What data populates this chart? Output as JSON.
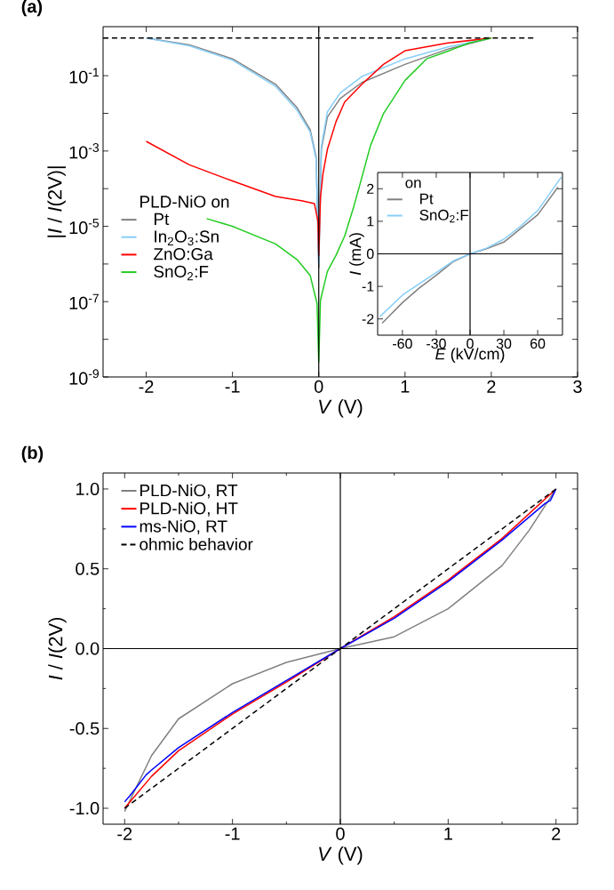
{
  "chart_data": [
    {
      "type": "line",
      "title": "(a)",
      "xlabel": "*V* (V)",
      "ylabel": "|*I* / *I*(2V)|",
      "log": "y",
      "legend": "left",
      "legend_title": "PLD-NiO on",
      "xlim": [
        -2.5,
        3
      ],
      "xticks": [
        -2,
        -1,
        0,
        1,
        2,
        3
      ],
      "ylim": [
        1e-09,
        2
      ],
      "yticks": [
        {
          "value": 1,
          "label": null
        },
        {
          "value": 0.1,
          "label": "10$^{-1}$"
        },
        {
          "value": 0.01,
          "label": null
        },
        {
          "value": 0.001,
          "label": "10$^{-3}$"
        },
        {
          "value": 0.0001,
          "label": null
        },
        {
          "value": 1e-05,
          "label": "10$^{-5}$"
        },
        {
          "value": 1e-06,
          "label": null
        },
        {
          "value": 1e-07,
          "label": "10$^{-7}$"
        },
        {
          "value": 1e-08,
          "label": null
        },
        {
          "value": 1e-09,
          "label": "10$^{-9}$"
        }
      ],
      "ref_lines": [
        {
          "axis": "x",
          "value": 0
        }
      ],
      "series": [
        {
          "name": "Pt",
          "color": "#808080",
          "x": [
            -2,
            -1.5,
            -1,
            -0.5,
            -0.25,
            -0.1,
            -0.03,
            0,
            0.03,
            0.1,
            0.25,
            0.5,
            1,
            1.5,
            2
          ],
          "values": [
            1,
            0.66,
            0.28,
            0.059,
            0.014,
            0.0037,
            0.00068,
            8e-07,
            0.0011,
            0.008,
            0.025,
            0.066,
            0.2,
            0.51,
            1
          ]
        },
        {
          "name": "In$_{2}$O$_{3}$:Sn",
          "color": "#87cefa",
          "x": [
            -2,
            -1.5,
            -1,
            -0.5,
            -0.25,
            -0.1,
            -0.03,
            0,
            0.03,
            0.1,
            0.25,
            0.5,
            1,
            1.5,
            2
          ],
          "values": [
            1,
            0.62,
            0.26,
            0.052,
            0.012,
            0.0032,
            0.0006,
            1e-06,
            0.0013,
            0.011,
            0.035,
            0.095,
            0.28,
            0.58,
            1
          ]
        },
        {
          "name": "ZnO:Ga",
          "color": "#ff0000",
          "x": [
            -2,
            -1.5,
            -1,
            -0.5,
            -0.2,
            -0.05,
            -0.01,
            0,
            0.02,
            0.05,
            0.1,
            0.2,
            0.3,
            0.5,
            0.75,
            1,
            1.5,
            2
          ],
          "values": [
            0.0018,
            0.00043,
            0.00016,
            6.2e-05,
            4.8e-05,
            4e-05,
            1.4e-05,
            1.7e-06,
            6e-05,
            0.00026,
            0.0011,
            0.006,
            0.02,
            0.059,
            0.2,
            0.46,
            0.74,
            1
          ]
        },
        {
          "name": "SnO$_{2}$:F",
          "color": "#22cc22",
          "x": [
            -1.3,
            -1,
            -0.5,
            -0.25,
            -0.1,
            -0.02,
            0,
            0.02,
            0.1,
            0.2,
            0.3,
            0.4,
            0.5,
            0.6,
            0.75,
            1,
            1.25,
            1.5,
            1.75,
            2
          ],
          "values": [
            1.6e-05,
            1e-05,
            3.4e-06,
            1.3e-06,
            5e-07,
            9e-08,
            2.5e-09,
            1.1e-07,
            6.3e-07,
            1.7e-06,
            5.5e-06,
            3e-05,
            0.0002,
            0.0014,
            0.0098,
            0.075,
            0.28,
            0.45,
            0.74,
            1
          ]
        },
        {
          "color": "#000000",
          "line_style": "dashed",
          "x": [
            -2.5,
            2.5
          ],
          "values": [
            1,
            1
          ]
        }
      ]
    },
    {
      "type": "line",
      "xlabel": "*E* (kV/cm)",
      "ylabel": "*I* (mA)",
      "legend": "top left",
      "legend_title": "on",
      "xlim": [
        -82,
        82
      ],
      "xticks": [
        -60,
        -30,
        0,
        30,
        60
      ],
      "ylim": [
        -2.5,
        2.5
      ],
      "yticks": [
        -2,
        -1,
        0,
        1,
        2
      ],
      "ref_lines": [
        {
          "axis": "x",
          "value": 0
        },
        {
          "axis": "y",
          "value": 0
        }
      ],
      "series": [
        {
          "name": "Pt",
          "color": "#808080",
          "x": [
            -78,
            -60,
            -45,
            -30,
            -15,
            0,
            15,
            30,
            45,
            60,
            78
          ],
          "values": [
            -2.13,
            -1.5,
            -1.05,
            -0.66,
            -0.24,
            0,
            0.16,
            0.36,
            0.78,
            1.2,
            2.05
          ]
        },
        {
          "name": "SnO$_{2}$:F",
          "color": "#87cefa",
          "x": [
            -80,
            -60,
            -45,
            -30,
            -15,
            0,
            15,
            30,
            45,
            60,
            81
          ],
          "values": [
            -1.93,
            -1.27,
            -0.92,
            -0.58,
            -0.22,
            0,
            0.18,
            0.45,
            0.85,
            1.33,
            2.36
          ]
        }
      ]
    },
    {
      "type": "line",
      "title": "(b)",
      "xlabel": "*V* (V)",
      "ylabel": "*I* / *I*(2V)",
      "legend": "top left",
      "xlim": [
        -2.2,
        2.2
      ],
      "xticks": [
        -2,
        -1,
        0,
        1,
        2
      ],
      "ylim": [
        -1.1,
        1.1
      ],
      "yticks": [
        {
          "value": -1,
          "label": "-1.0"
        },
        {
          "value": -0.5,
          "label": "-0.5"
        },
        {
          "value": 0,
          "label": "0.0"
        },
        {
          "value": 0.5,
          "label": "0.5"
        },
        {
          "value": 1,
          "label": "1.0"
        }
      ],
      "ref_lines": [
        {
          "axis": "x",
          "value": 0
        },
        {
          "axis": "y",
          "value": 0
        }
      ],
      "series": [
        {
          "name": "PLD-NiO, RT",
          "color": "#808080",
          "x": [
            -2,
            -1.75,
            -1.5,
            -1,
            -0.5,
            0,
            0.5,
            1,
            1.5,
            1.75,
            2
          ],
          "values": [
            -1.02,
            -0.67,
            -0.44,
            -0.22,
            -0.086,
            0,
            0.074,
            0.25,
            0.52,
            0.74,
            1
          ]
        },
        {
          "name": "PLD-NiO, HT",
          "color": "#ff0000",
          "x": [
            -2,
            -1.75,
            -1.5,
            -1,
            -0.5,
            0,
            0.5,
            1,
            1.5,
            2
          ],
          "values": [
            -1,
            -0.8,
            -0.64,
            -0.41,
            -0.21,
            0,
            0.2,
            0.43,
            0.69,
            1
          ]
        },
        {
          "name": "ms-NiO, RT",
          "color": "#0000ff",
          "x": [
            -2,
            -1.95,
            -1.8,
            -1.75,
            -1.5,
            -1,
            -0.5,
            0,
            0.5,
            1,
            1.5,
            1.9,
            1.95,
            2
          ],
          "values": [
            -0.96,
            -0.92,
            -0.79,
            -0.76,
            -0.62,
            -0.4,
            -0.2,
            0,
            0.19,
            0.42,
            0.68,
            0.91,
            0.93,
            1
          ]
        },
        {
          "name": "ohmic behavior",
          "color": "#000000",
          "line_style": "dashed",
          "x": [
            -2,
            2
          ],
          "values": [
            -1,
            1
          ]
        }
      ]
    }
  ]
}
